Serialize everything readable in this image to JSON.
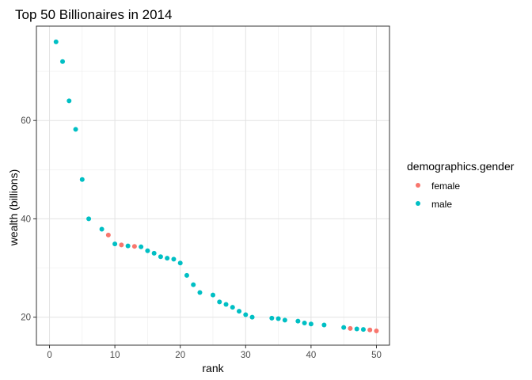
{
  "chart_data": {
    "type": "scatter",
    "title": "Top 50 Billionaires in 2014",
    "xlabel": "rank",
    "ylabel": "wealth (billions)",
    "xlim": [
      -2,
      52
    ],
    "ylim": [
      14.3,
      79.2
    ],
    "x_ticks": [
      0,
      10,
      20,
      30,
      40,
      50
    ],
    "y_ticks": [
      20,
      40,
      60
    ],
    "grid": true,
    "legend": {
      "title": "demographics.gender",
      "placement": "right",
      "entries": [
        {
          "name": "female",
          "color": "#F8766D"
        },
        {
          "name": "male",
          "color": "#00BFC4"
        }
      ]
    },
    "series": [
      {
        "name": "female",
        "color": "#F8766D",
        "points": [
          {
            "x": 9,
            "y": 36.7
          },
          {
            "x": 11,
            "y": 34.7
          },
          {
            "x": 13,
            "y": 34.4
          },
          {
            "x": 46,
            "y": 17.7
          },
          {
            "x": 49,
            "y": 17.4
          },
          {
            "x": 50,
            "y": 17.2
          }
        ]
      },
      {
        "name": "male",
        "color": "#00BFC4",
        "points": [
          {
            "x": 1,
            "y": 76.0
          },
          {
            "x": 2,
            "y": 72.0
          },
          {
            "x": 3,
            "y": 64.0
          },
          {
            "x": 4,
            "y": 58.2
          },
          {
            "x": 5,
            "y": 48.0
          },
          {
            "x": 6,
            "y": 40.0
          },
          {
            "x": 8,
            "y": 37.9
          },
          {
            "x": 10,
            "y": 34.9
          },
          {
            "x": 12,
            "y": 34.5
          },
          {
            "x": 14,
            "y": 34.3
          },
          {
            "x": 15,
            "y": 33.5
          },
          {
            "x": 16,
            "y": 33.0
          },
          {
            "x": 17,
            "y": 32.3
          },
          {
            "x": 18,
            "y": 32.0
          },
          {
            "x": 19,
            "y": 31.8
          },
          {
            "x": 20,
            "y": 31.0
          },
          {
            "x": 21,
            "y": 28.5
          },
          {
            "x": 22,
            "y": 26.6
          },
          {
            "x": 23,
            "y": 25.0
          },
          {
            "x": 25,
            "y": 24.5
          },
          {
            "x": 26,
            "y": 23.1
          },
          {
            "x": 27,
            "y": 22.6
          },
          {
            "x": 28,
            "y": 22.0
          },
          {
            "x": 29,
            "y": 21.2
          },
          {
            "x": 30,
            "y": 20.5
          },
          {
            "x": 31,
            "y": 20.0
          },
          {
            "x": 34,
            "y": 19.8
          },
          {
            "x": 35,
            "y": 19.7
          },
          {
            "x": 36,
            "y": 19.4
          },
          {
            "x": 38,
            "y": 19.2
          },
          {
            "x": 39,
            "y": 18.8
          },
          {
            "x": 40,
            "y": 18.6
          },
          {
            "x": 42,
            "y": 18.4
          },
          {
            "x": 45,
            "y": 17.9
          },
          {
            "x": 47,
            "y": 17.6
          },
          {
            "x": 48,
            "y": 17.5
          }
        ]
      }
    ]
  }
}
